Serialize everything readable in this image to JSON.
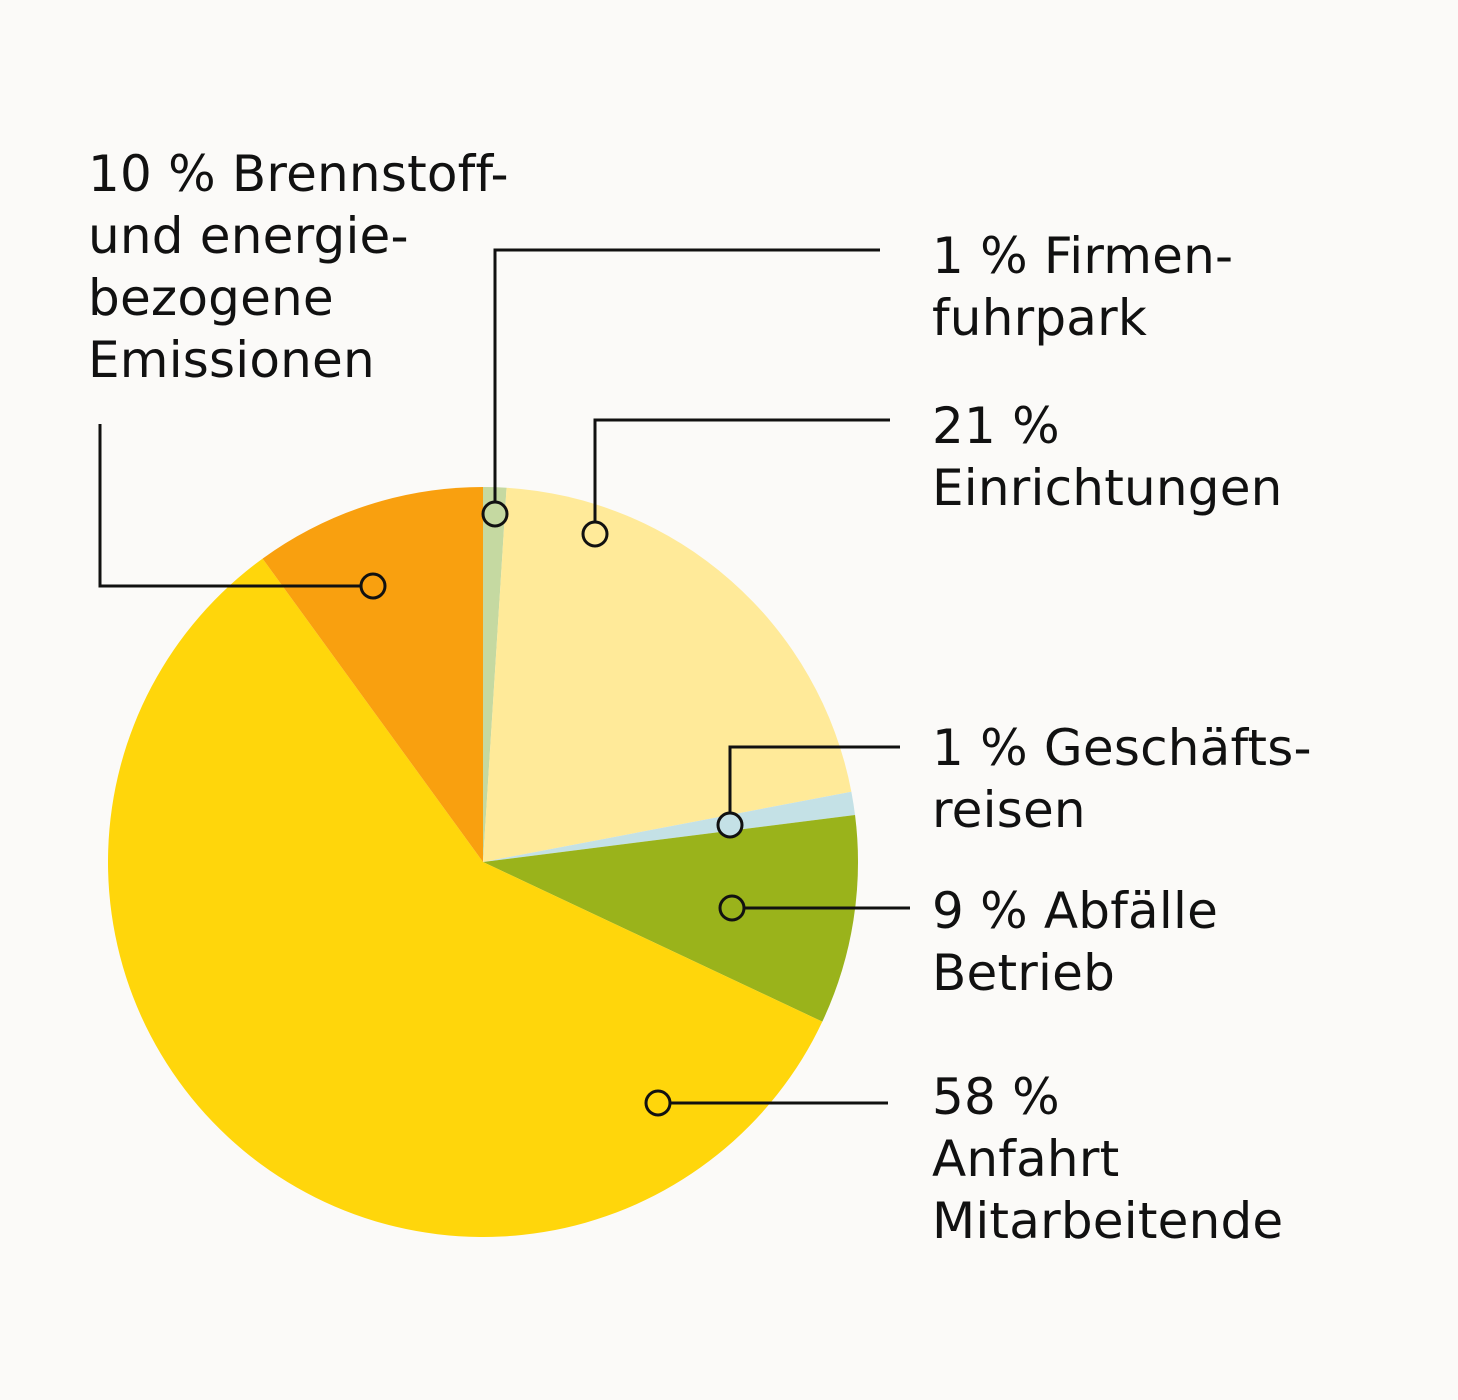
{
  "chart_data": {
    "type": "pie",
    "title": "",
    "start_angle_deg": 0,
    "direction": "clockwise",
    "slices": [
      {
        "label_lines": [
          "1 % Firmen-",
          "fuhrpark"
        ],
        "value": 1,
        "color": "#c5d9a1"
      },
      {
        "label_lines": [
          "21 %",
          "Einrichtungen"
        ],
        "value": 21,
        "color": "#ffea99"
      },
      {
        "label_lines": [
          "1 % Geschäfts-",
          "reisen"
        ],
        "value": 1,
        "color": "#c4e1e6"
      },
      {
        "label_lines": [
          "9 % Abfälle",
          "Betrieb"
        ],
        "value": 9,
        "color": "#9ab31b"
      },
      {
        "label_lines": [
          "58 %",
          "Anfahrt",
          "Mitarbeitende"
        ],
        "value": 58,
        "color": "#ffd60b"
      },
      {
        "label_lines": [
          "10 % Brennstoff-",
          "und energie-",
          "bezogene",
          "Emissionen"
        ],
        "value": 10,
        "color": "#f9a00f"
      }
    ]
  }
}
